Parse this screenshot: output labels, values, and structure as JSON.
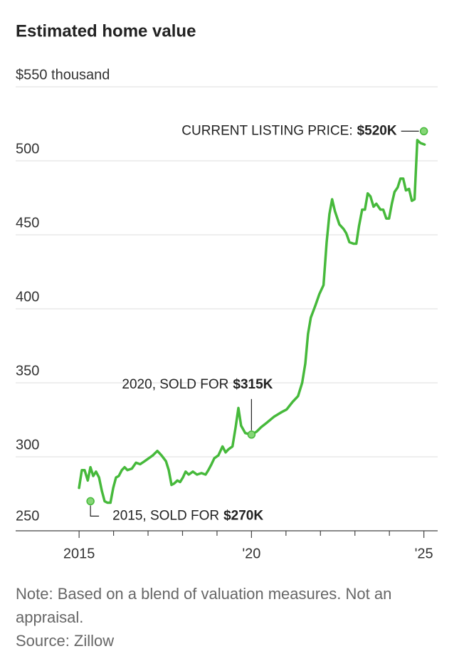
{
  "chart_data": {
    "type": "line",
    "title": "Estimated home value",
    "xlim": [
      2013.16,
      2025.4
    ],
    "xticks": [
      2015,
      {
        "value": 2020,
        "label": "'20"
      },
      {
        "value": 2025,
        "label": "'25"
      }
    ],
    "xminor_ticks": [
      2016,
      2017,
      2018,
      2019,
      2021,
      2022,
      2023,
      2024
    ],
    "ylim": [
      250,
      550
    ],
    "yticks": [
      250,
      300,
      350,
      400,
      450,
      500,
      {
        "value": 550,
        "label": "$550 thousand"
      }
    ],
    "grid": true,
    "series": [
      {
        "color": "#46b93b",
        "x": [
          2015.0,
          2015.08,
          2015.16,
          2015.25,
          2015.33,
          2015.41,
          2015.49,
          2015.58,
          2015.66,
          2015.74,
          2015.82,
          2015.91,
          2015.99,
          2016.07,
          2016.15,
          2016.24,
          2016.32,
          2016.4,
          2016.53,
          2016.65,
          2016.77,
          2016.9,
          2017.02,
          2017.14,
          2017.27,
          2017.39,
          2017.52,
          2017.6,
          2017.68,
          2017.76,
          2017.85,
          2017.93,
          2018.01,
          2018.09,
          2018.18,
          2018.3,
          2018.42,
          2018.55,
          2018.67,
          2018.75,
          2018.84,
          2018.92,
          2019.04,
          2019.16,
          2019.25,
          2019.33,
          2019.45,
          2019.54,
          2019.62,
          2019.7,
          2019.82,
          2020.0,
          2020.15,
          2020.28,
          2020.44,
          2020.65,
          2020.86,
          2021.02,
          2021.19,
          2021.35,
          2021.47,
          2021.56,
          2021.64,
          2021.72,
          2021.85,
          2021.97,
          2022.09,
          2022.18,
          2022.26,
          2022.34,
          2022.42,
          2022.55,
          2022.67,
          2022.75,
          2022.84,
          2022.96,
          2023.04,
          2023.12,
          2023.21,
          2023.29,
          2023.37,
          2023.45,
          2023.54,
          2023.62,
          2023.74,
          2023.82,
          2023.91,
          2023.99,
          2024.07,
          2024.15,
          2024.24,
          2024.32,
          2024.4,
          2024.48,
          2024.57,
          2024.65,
          2024.73,
          2024.81,
          2024.9,
          2025.02
        ],
        "values": [
          279,
          291,
          291,
          284,
          293,
          287,
          290,
          286,
          277,
          270,
          269,
          269,
          279,
          286,
          287,
          291,
          293,
          291,
          292,
          296,
          295,
          297,
          299,
          301,
          304,
          301,
          297,
          291,
          281,
          282,
          284,
          283,
          286,
          290,
          288,
          290,
          288,
          289,
          288,
          291,
          295,
          299,
          301,
          307,
          303,
          305,
          307,
          320,
          333,
          321,
          316,
          315,
          317,
          320,
          323,
          327,
          330,
          332,
          337,
          341,
          350,
          363,
          383,
          394,
          402,
          410,
          416,
          445,
          464,
          474,
          466,
          457,
          454,
          451,
          445,
          444,
          444,
          456,
          467,
          467,
          478,
          476,
          469,
          471,
          467,
          467,
          461,
          461,
          471,
          479,
          482,
          488,
          488,
          480,
          481,
          473,
          474,
          514,
          512,
          511
        ]
      }
    ],
    "annotations": [
      {
        "text": "2015, SOLD FOR",
        "value_label": "$270K",
        "x": 2015.33,
        "value": 270
      },
      {
        "text": "2020, SOLD FOR",
        "value_label": "$315K",
        "x": 2020.0,
        "value": 315
      },
      {
        "text": "CURRENT LISTING PRICE:",
        "value_label": "$520K",
        "x": 2025.0,
        "value": 520
      }
    ],
    "notes": [
      "Note: Based on a blend of valuation measures. Not an appraisal.",
      "Source: Zillow"
    ]
  }
}
